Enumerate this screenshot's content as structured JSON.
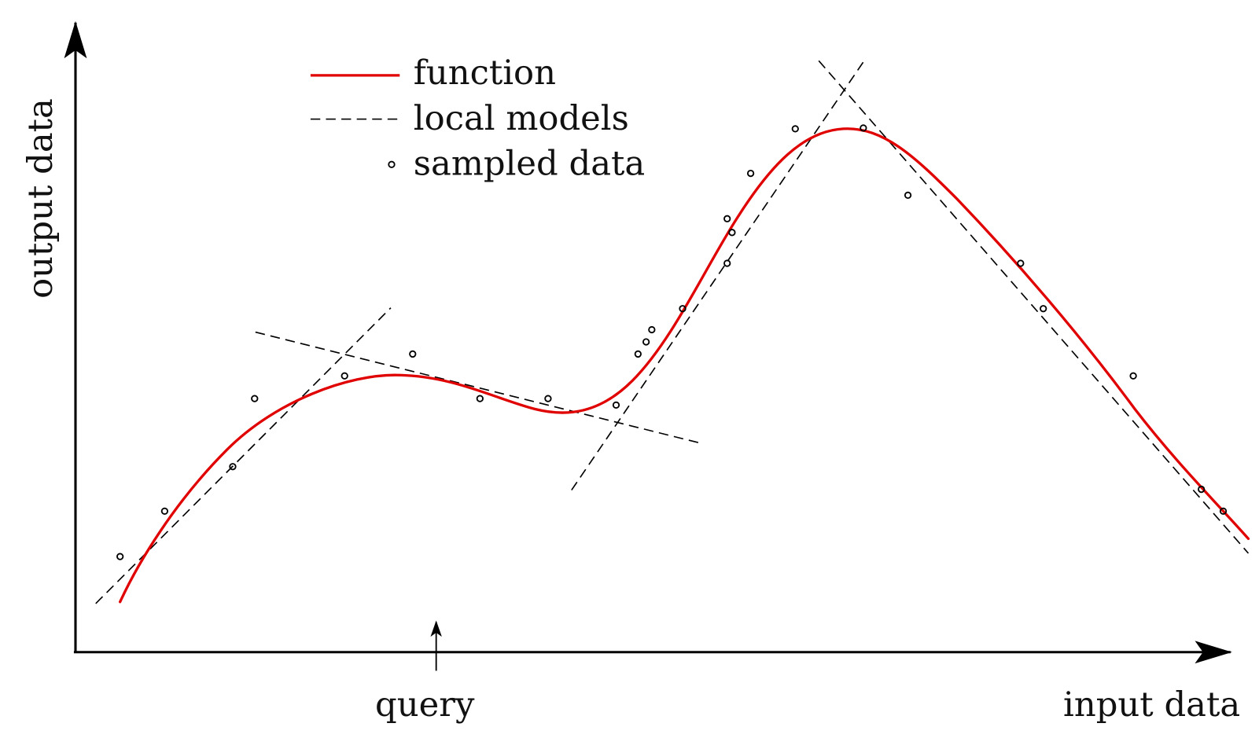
{
  "legend": {
    "items": [
      "function",
      "local models",
      "sampled data"
    ]
  },
  "axes": {
    "y_label": "output data",
    "x_label": "input data"
  },
  "annotation": {
    "query": "query"
  }
}
